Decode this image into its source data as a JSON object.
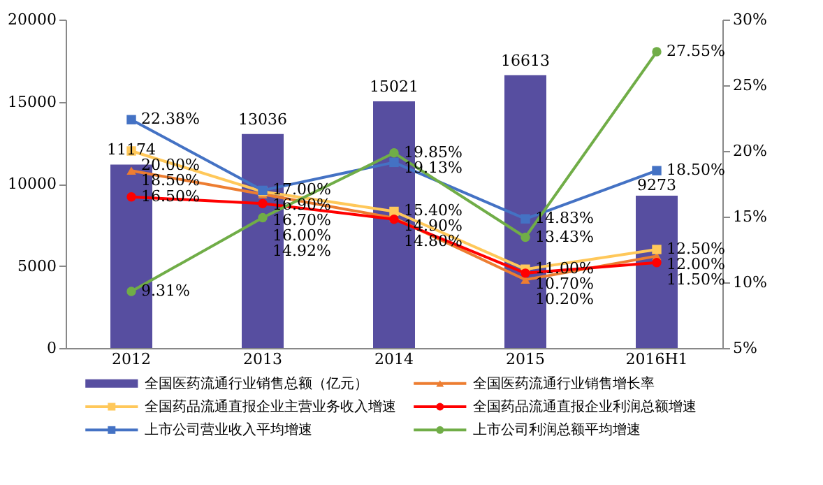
{
  "chart_data": {
    "type": "bar",
    "categories": [
      "2012",
      "2013",
      "2014",
      "2015",
      "2016H1"
    ],
    "series": [
      {
        "name": "全国医药流通行业销售总额（亿元）",
        "color": "#574ea0",
        "values": [
          11174,
          13036,
          15021,
          16613,
          9273
        ]
      },
      {
        "name": "全国医药流通行业销售增长率",
        "type": "line",
        "axis": "y2",
        "marker": "triangle",
        "color": "#ed7d31",
        "values": [
          18.5,
          16.7,
          14.9,
          10.2,
          12.0
        ],
        "value_labels": [
          "18.50%",
          "16.70%",
          "14.90%",
          "10.20%",
          "12.00%"
        ]
      },
      {
        "name": "全国药品流通直报企业主营业务收入增速",
        "type": "line",
        "axis": "y2",
        "marker": "square",
        "color": "#ffc85a",
        "values": [
          20.0,
          16.9,
          15.4,
          11.0,
          12.5
        ],
        "value_labels": [
          "20.00%",
          "16.90%",
          "15.40%",
          "11.00%",
          "12.50%"
        ]
      },
      {
        "name": "全国药品流通直报企业利润总额增速",
        "type": "line",
        "axis": "y2",
        "marker": "circle",
        "color": "#ff0000",
        "values": [
          16.5,
          16.0,
          14.8,
          10.7,
          11.5
        ],
        "value_labels": [
          "16.50%",
          "16.00%",
          "14.80%",
          "10.70%",
          "11.50%"
        ]
      },
      {
        "name": "上市公司营业收入平均增速",
        "type": "line",
        "axis": "y2",
        "marker": "square",
        "color": "#4472c4",
        "values": [
          22.38,
          17.0,
          19.13,
          14.83,
          18.5
        ],
        "value_labels": [
          "22.38%",
          "17.00%",
          "19.13%",
          "14.83%",
          "18.50%"
        ]
      },
      {
        "name": "上市公司利润总额平均增速",
        "type": "line",
        "axis": "y2",
        "marker": "circle",
        "color": "#70ad47",
        "values": [
          9.31,
          14.92,
          19.85,
          13.43,
          27.55
        ],
        "value_labels": [
          "9.31%",
          "14.92%",
          "19.85%",
          "13.43%",
          "27.55%"
        ]
      }
    ],
    "ylim": [
      0,
      20000
    ],
    "yticks": [
      0,
      5000,
      10000,
      15000,
      20000
    ],
    "y2lim": [
      5,
      30
    ],
    "y2ticks": [
      {
        "value": 5,
        "label": "5%"
      },
      {
        "value": 10,
        "label": "10%"
      },
      {
        "value": 15,
        "label": "15%"
      },
      {
        "value": 20,
        "label": "20%"
      },
      {
        "value": 25,
        "label": "25%"
      },
      {
        "value": 30,
        "label": "30%"
      }
    ],
    "data_labels": true,
    "legend": "bottom",
    "grid": false
  }
}
